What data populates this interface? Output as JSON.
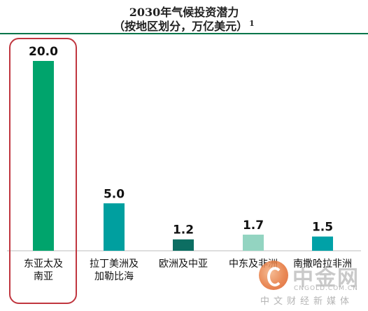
{
  "chart_data": {
    "type": "bar",
    "title": "2030年气候投资潜力",
    "subtitle": "（按地区划分，万亿美元）",
    "footnote_marker": "1",
    "categories": [
      [
        "东亚太及",
        "南亚"
      ],
      [
        "拉丁美洲及",
        "加勒比海"
      ],
      [
        "欧洲及中亚"
      ],
      [
        "中东及非洲"
      ],
      [
        "南撒哈拉非洲"
      ]
    ],
    "values": [
      20.0,
      5.0,
      1.2,
      1.7,
      1.5
    ],
    "value_labels": [
      "20.0",
      "5.0",
      "1.2",
      "1.7",
      "1.5"
    ],
    "colors": [
      "#00a46c",
      "#009f9f",
      "#0c6e62",
      "#93d4c1",
      "#00a1a7"
    ],
    "ylim": [
      0,
      20
    ],
    "highlighted_category_index": 0,
    "highlight_color": "#c0363f",
    "accent_color": "#00754a",
    "grid": false,
    "legend": "none"
  },
  "watermark": {
    "name": "中金网",
    "domain": "CNGOLD.COM.CN",
    "sub": "中文财经新媒体"
  }
}
